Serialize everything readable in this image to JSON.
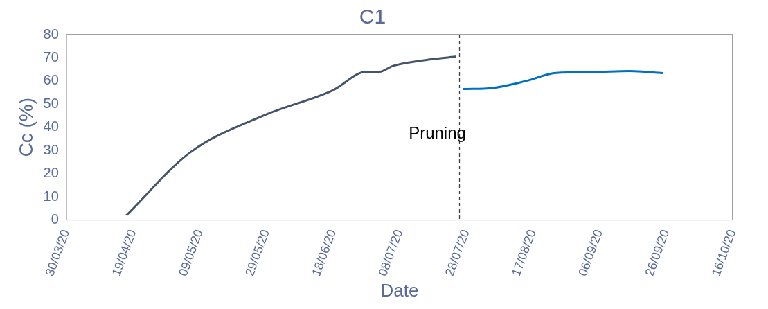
{
  "chart_data": {
    "type": "line",
    "title": "C1",
    "xlabel": "Date",
    "ylabel": "Cc (%)",
    "series": [
      {
        "color": "#44546a",
        "x": [
          "2020-04-17",
          "2020-05-06",
          "2020-05-28",
          "2020-06-18",
          "2020-06-28",
          "2020-07-02",
          "2020-07-06",
          "2020-07-14",
          "2020-07-25"
        ],
        "values": [
          2,
          29,
          45,
          56,
          64,
          64,
          66.5,
          68.7,
          70.6
        ]
      },
      {
        "color": "#0070c0",
        "x": [
          "2020-07-27",
          "2020-08-05",
          "2020-08-15",
          "2020-08-24",
          "2020-09-04",
          "2020-09-15",
          "2020-09-25"
        ],
        "values": [
          56.5,
          57,
          60,
          63.5,
          63.8,
          64.3,
          63.4
        ]
      }
    ],
    "xlim": [
      "2020-03-30",
      "2020-10-16"
    ],
    "xticks": [
      {
        "value": "2020-03-30",
        "label": "30/03/20"
      },
      {
        "value": "2020-04-19",
        "label": "19/04/20"
      },
      {
        "value": "2020-05-09",
        "label": "09/05/20"
      },
      {
        "value": "2020-05-29",
        "label": "29/05/20"
      },
      {
        "value": "2020-06-18",
        "label": "18/06/20"
      },
      {
        "value": "2020-07-08",
        "label": "08/07/20"
      },
      {
        "value": "2020-07-28",
        "label": "28/07/20"
      },
      {
        "value": "2020-08-17",
        "label": "17/08/20"
      },
      {
        "value": "2020-09-06",
        "label": "06/09/20"
      },
      {
        "value": "2020-09-26",
        "label": "26/09/20"
      },
      {
        "value": "2020-10-16",
        "label": "16/10/20"
      }
    ],
    "ylim": [
      0,
      80
    ],
    "yticks": [
      0,
      10,
      20,
      30,
      40,
      50,
      60,
      70,
      80
    ],
    "ref_lines": [
      {
        "axis": "x",
        "value": "2020-07-26",
        "label": "Pruning",
        "color": "#404040",
        "line_style": "dashed"
      }
    ],
    "grid": false,
    "legend": false,
    "marker": "none",
    "line_style": "solid"
  }
}
